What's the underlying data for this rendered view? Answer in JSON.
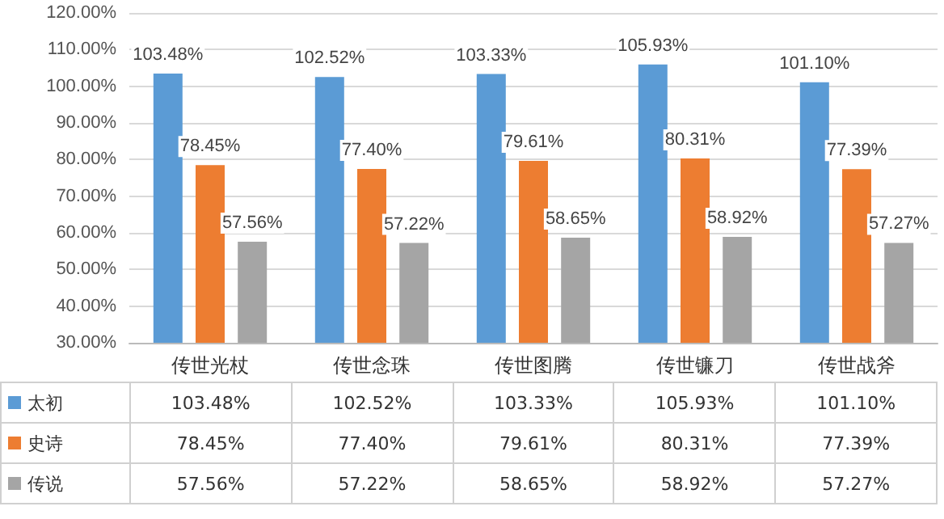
{
  "chart_data": {
    "type": "bar",
    "categories": [
      "传世光杖",
      "传世念珠",
      "传世图腾",
      "传世镰刀",
      "传世战斧"
    ],
    "series": [
      {
        "name": "太初",
        "color": "#5b9bd5",
        "values": [
          103.48,
          102.52,
          103.33,
          105.93,
          101.1
        ],
        "value_labels": [
          "103.48%",
          "102.52%",
          "103.33%",
          "105.93%",
          "101.10%"
        ]
      },
      {
        "name": "史诗",
        "color": "#ed7d31",
        "values": [
          78.45,
          77.4,
          79.61,
          80.31,
          77.39
        ],
        "value_labels": [
          "78.45%",
          "77.40%",
          "79.61%",
          "80.31%",
          "77.39%"
        ]
      },
      {
        "name": "传说",
        "color": "#a5a5a5",
        "values": [
          57.56,
          57.22,
          58.65,
          58.92,
          57.27
        ],
        "value_labels": [
          "57.56%",
          "57.22%",
          "58.65%",
          "58.92%",
          "57.27%"
        ]
      }
    ],
    "ylim": [
      30,
      120
    ],
    "yticks": [
      {
        "value": 30,
        "label": "30.00%"
      },
      {
        "value": 40,
        "label": "40.00%"
      },
      {
        "value": 50,
        "label": "50.00%"
      },
      {
        "value": 60,
        "label": "60.00%"
      },
      {
        "value": 70,
        "label": "70.00%"
      },
      {
        "value": 80,
        "label": "80.00%"
      },
      {
        "value": 90,
        "label": "90.00%"
      },
      {
        "value": 100,
        "label": "100.00%"
      },
      {
        "value": 110,
        "label": "110.00%"
      },
      {
        "value": 120,
        "label": "120.00%"
      }
    ],
    "grid": "y",
    "legend": "bottom"
  }
}
